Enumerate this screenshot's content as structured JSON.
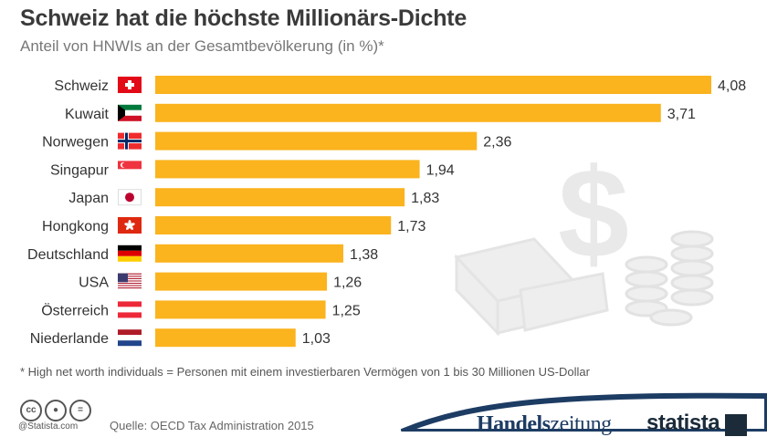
{
  "header": {
    "title": "Schweiz hat die höchste Millionärs-Dichte",
    "subtitle": "Anteil von HNWIs an der Gesamtbevölkerung (in %)*"
  },
  "chart_data": {
    "type": "bar",
    "orientation": "horizontal",
    "categories": [
      "Schweiz",
      "Kuwait",
      "Norwegen",
      "Singapur",
      "Japan",
      "Hongkong",
      "Deutschland",
      "USA",
      "Österreich",
      "Niederlande"
    ],
    "values": [
      4.08,
      3.71,
      2.36,
      1.94,
      1.83,
      1.73,
      1.38,
      1.26,
      1.25,
      1.03
    ],
    "value_labels": [
      "4,08",
      "3,71",
      "2,36",
      "1,94",
      "1,83",
      "1,73",
      "1,38",
      "1,26",
      "1,25",
      "1,03"
    ],
    "flags": [
      "swiss-flag-icon",
      "kuwait-flag-icon",
      "norway-flag-icon",
      "singapore-flag-icon",
      "japan-flag-icon",
      "hongkong-flag-icon",
      "germany-flag-icon",
      "usa-flag-icon",
      "austria-flag-icon",
      "netherlands-flag-icon"
    ],
    "xlim": [
      0,
      4.08
    ],
    "bar_color": "#fbb31e",
    "grid": false,
    "legend": "none"
  },
  "footer": {
    "footnote": "* High net worth individuals = Personen mit einem investierbaren Vermögen von 1 bis 30 Millionen US-Dollar",
    "credit": "@Statista.com",
    "source": "Quelle: OECD Tax Administration 2015",
    "brand_handels": "Handels",
    "brand_zeitung": "zeitung",
    "brand_statista": "statista"
  },
  "colors": {
    "background": "#ffffff",
    "bar": "#fbb31e",
    "title": "#3a3a3a",
    "brand_navy": "#1d3c63",
    "illustration": "#e9e9e9"
  },
  "icons": {
    "cc": [
      "cc-icon",
      "by-icon",
      "nd-icon"
    ],
    "decoration": [
      "dollar-sign-icon",
      "gold-bars-icon",
      "coin-stack-icon"
    ],
    "logo": "statista-logo-icon"
  }
}
